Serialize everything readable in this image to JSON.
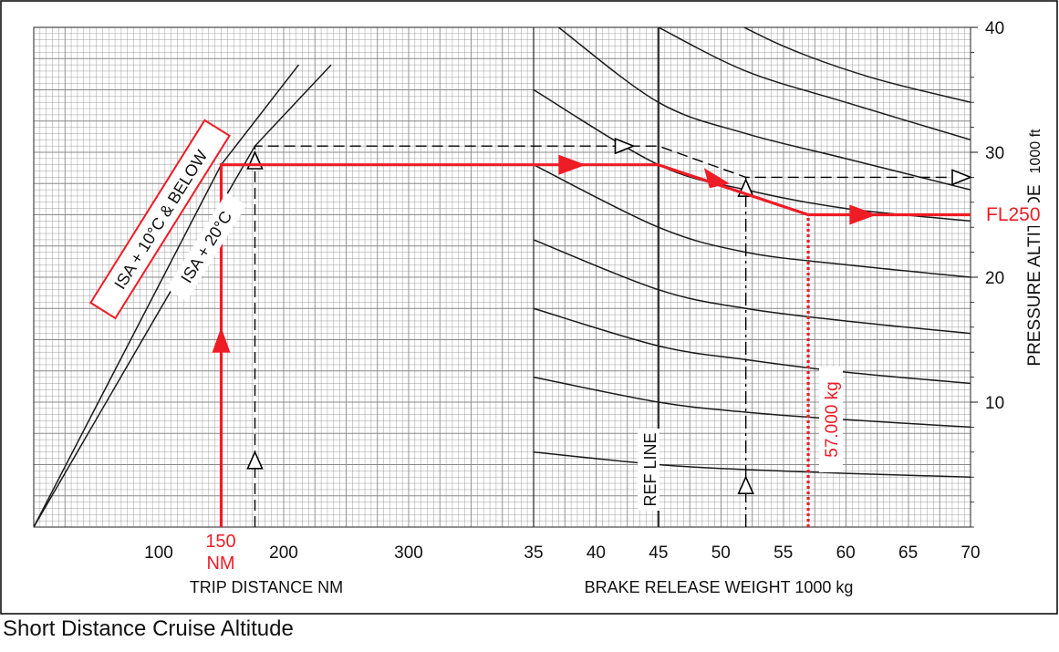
{
  "caption": "Short Distance Cruise Altitude",
  "colors": {
    "grid": "#888888",
    "curve": "#1a1a1a",
    "example": "#ee1c25",
    "dashed": "#000000"
  },
  "chart_data": {
    "type": "line",
    "title": "",
    "panels": [
      {
        "name": "trip_distance",
        "xlabel": "TRIP DISTANCE  NM",
        "xlim": [
          0,
          400
        ],
        "xticks": [
          "100",
          "200",
          "300"
        ],
        "series": [
          {
            "name": "ISA + 10°C & BELOW",
            "x": [
              0,
              150,
              212
            ],
            "y": [
              0,
              29,
              37
            ]
          },
          {
            "name": "ISA + 20°C",
            "x": [
              0,
              177,
              238
            ],
            "y": [
              0,
              30.5,
              37
            ]
          }
        ]
      },
      {
        "name": "brake_release_weight",
        "xlabel": "BRAKE RELEASE WEIGHT   1000 kg",
        "xlim": [
          35,
          70
        ],
        "xticks": [
          "35",
          "40",
          "45",
          "50",
          "55",
          "60",
          "65",
          "70"
        ],
        "ref_line_label": "REF LINE",
        "ref_line_x": 45,
        "guide_curves": [
          {
            "x": [
              35,
              45,
              52,
              60,
              70
            ],
            "y": [
              6.0,
              5.0,
              4.6,
              4.3,
              4.0
            ]
          },
          {
            "x": [
              35,
              45,
              52,
              60,
              70
            ],
            "y": [
              12.0,
              10.0,
              9.2,
              8.6,
              8.0
            ]
          },
          {
            "x": [
              35,
              45,
              52,
              60,
              70
            ],
            "y": [
              17.5,
              14.5,
              13.4,
              12.4,
              11.5
            ]
          },
          {
            "x": [
              35,
              45,
              52,
              60,
              70
            ],
            "y": [
              23.0,
              19.0,
              17.5,
              16.5,
              15.5
            ]
          },
          {
            "x": [
              35,
              45,
              52,
              60,
              70
            ],
            "y": [
              29.0,
              24.0,
              22.0,
              21.0,
              20.0
            ]
          },
          {
            "x": [
              35,
              45,
              52,
              60,
              70
            ],
            "y": [
              35.0,
              29.0,
              27.0,
              25.5,
              24.5
            ]
          },
          {
            "x": [
              37,
              45,
              52,
              60,
              70
            ],
            "y": [
              40.0,
              34.0,
              31.5,
              29.5,
              27.0
            ]
          },
          {
            "x": [
              45,
              52,
              60,
              70
            ],
            "y": [
              40.0,
              36.5,
              34.0,
              31.0
            ]
          },
          {
            "x": [
              48,
              55,
              62,
              70
            ],
            "y": [
              42.0,
              38.5,
              36.0,
              34.0
            ]
          }
        ]
      }
    ],
    "y_axis": {
      "label": "PRESSURE ALTITUDE",
      "unit": "1000 ft",
      "ylim": [
        0,
        40
      ],
      "ticks": [
        "10",
        "20",
        "30",
        "40"
      ]
    },
    "example": {
      "distance_label": "150\nNM",
      "distance_nm": 150,
      "weight_label": "57.000 kg",
      "weight_1000kg": 57,
      "result_label": "FL250",
      "path": [
        {
          "panel": "trip_distance",
          "x": 150,
          "y": 0
        },
        {
          "panel": "trip_distance",
          "x": 150,
          "y": 29
        },
        {
          "panel": "brake_release_weight",
          "x": 45,
          "y": 29
        },
        {
          "panel": "brake_release_weight",
          "x": 57,
          "y": 25
        },
        {
          "panel": "brake_release_weight",
          "x": 70,
          "y": 25
        }
      ]
    },
    "dashed_example": {
      "path": [
        {
          "panel": "trip_distance",
          "x": 177,
          "y": 0
        },
        {
          "panel": "trip_distance",
          "x": 177,
          "y": 30.5
        },
        {
          "panel": "brake_release_weight",
          "x": 45,
          "y": 30.5
        },
        {
          "panel": "brake_release_weight",
          "x": 52,
          "y": 28
        },
        {
          "panel": "brake_release_weight",
          "x": 70,
          "y": 28
        }
      ],
      "weight_1000kg": 52
    }
  }
}
